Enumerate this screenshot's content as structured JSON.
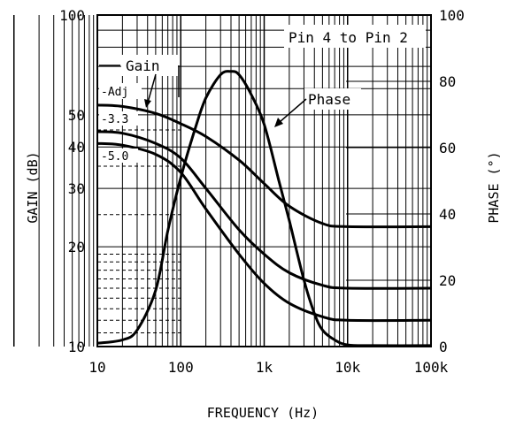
{
  "chart_data": {
    "type": "line",
    "x_scale": "log",
    "y_left_scale": "log",
    "xlabel": "FREQUENCY (Hz)",
    "ylabel_left": "GAIN (dB)",
    "ylabel_right": "PHASE (°)",
    "xlim": [
      10,
      100000
    ],
    "ylim_left": [
      10,
      100
    ],
    "ylim_right": [
      0,
      100
    ],
    "x_ticks": [
      {
        "value": 10,
        "label": "10"
      },
      {
        "value": 100,
        "label": "100"
      },
      {
        "value": 1000,
        "label": "1k"
      },
      {
        "value": 10000,
        "label": "10k"
      },
      {
        "value": 100000,
        "label": "100k"
      }
    ],
    "y_left_ticks": [
      {
        "value": 10,
        "label": "10"
      },
      {
        "value": 20,
        "label": "20"
      },
      {
        "value": 30,
        "label": "30"
      },
      {
        "value": 40,
        "label": "40"
      },
      {
        "value": 50,
        "label": "50"
      },
      {
        "value": 100,
        "label": "100"
      }
    ],
    "y_right_ticks": [
      {
        "value": 0,
        "label": "0"
      },
      {
        "value": 20,
        "label": "20"
      },
      {
        "value": 40,
        "label": "40"
      },
      {
        "value": 60,
        "label": "60"
      },
      {
        "value": 80,
        "label": "80"
      },
      {
        "value": 100,
        "label": "100"
      }
    ],
    "annotations": {
      "condition": "Pin 4 to Pin 2",
      "gain_label": "Gain",
      "phase_label": "Phase"
    },
    "series": [
      {
        "name": "-Adj",
        "axis": "left",
        "x": [
          10,
          20,
          50,
          100,
          200,
          500,
          1000,
          2000,
          5000,
          10000,
          100000
        ],
        "y": [
          53.5,
          53,
          50.5,
          47,
          43,
          36.5,
          31,
          26.5,
          23.5,
          23,
          23
        ]
      },
      {
        "name": "-3.3",
        "axis": "left",
        "x": [
          10,
          20,
          50,
          100,
          200,
          500,
          1000,
          2000,
          5000,
          10000,
          100000
        ],
        "y": [
          44.5,
          44,
          41,
          37,
          30,
          22.5,
          19,
          16.7,
          15.3,
          15,
          15
        ]
      },
      {
        "name": "-5.0",
        "axis": "left",
        "x": [
          10,
          20,
          50,
          100,
          200,
          500,
          1000,
          2000,
          5000,
          10000,
          100000
        ],
        "y": [
          41,
          40.5,
          38,
          33.5,
          26,
          19,
          15.5,
          13.5,
          12.3,
          12,
          12
        ]
      },
      {
        "name": "Phase",
        "axis": "right",
        "x": [
          10,
          20,
          30,
          50,
          70,
          100,
          150,
          200,
          300,
          400,
          500,
          700,
          1000,
          1500,
          2000,
          3000,
          4000,
          5000,
          7000,
          10000,
          20000,
          100000
        ],
        "y": [
          1,
          2,
          5,
          17,
          35,
          51,
          66,
          75,
          82,
          83,
          82,
          76,
          67,
          50,
          38,
          20,
          10,
          5,
          2,
          0.5,
          0.3,
          0.3
        ]
      }
    ]
  }
}
